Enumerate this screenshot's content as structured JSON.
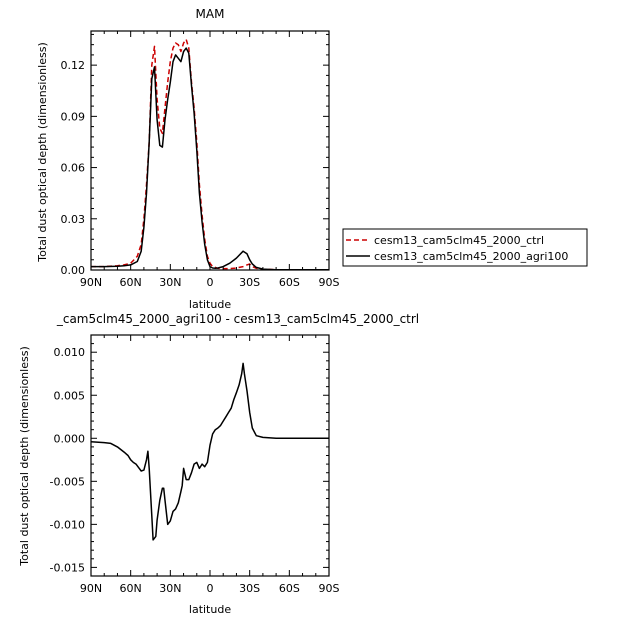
{
  "chart_data": [
    {
      "type": "line",
      "title": "MAM",
      "xlabel": "latitude",
      "ylabel": "Total dust optical depth (dimensionless)",
      "xlim": [
        90,
        -90
      ],
      "ylim": [
        0,
        0.14
      ],
      "xticks": [
        90,
        60,
        30,
        0,
        -30,
        -60,
        -90
      ],
      "xticklabels": [
        "90N",
        "60N",
        "30N",
        "0",
        "30S",
        "60S",
        "90S"
      ],
      "yticks": [
        0,
        0.03,
        0.06,
        0.09,
        0.12
      ],
      "yticklabels": [
        "0.00",
        "0.03",
        "0.06",
        "0.09",
        "0.12"
      ],
      "legend_position": "right",
      "series": [
        {
          "name": "cesm13_cam5clm45_2000_ctrl",
          "color": "#cc0000",
          "dash": "dashed",
          "x": [
            90,
            80,
            70,
            65,
            60,
            55,
            52,
            50,
            48,
            46,
            44,
            42,
            40,
            38,
            36,
            34,
            32,
            30,
            28,
            26,
            24,
            22,
            20,
            18,
            16,
            14,
            12,
            10,
            8,
            6,
            4,
            2,
            0,
            -2,
            -4,
            -6,
            -10,
            -15,
            -20,
            -25,
            -28,
            -30,
            -32,
            -35,
            -40,
            -50,
            -60,
            -70,
            -80,
            -90
          ],
          "y": [
            0.002,
            0.002,
            0.0025,
            0.003,
            0.004,
            0.008,
            0.015,
            0.03,
            0.05,
            0.075,
            0.12,
            0.131,
            0.1,
            0.083,
            0.08,
            0.095,
            0.11,
            0.122,
            0.13,
            0.133,
            0.132,
            0.128,
            0.133,
            0.135,
            0.13,
            0.11,
            0.095,
            0.075,
            0.05,
            0.032,
            0.018,
            0.008,
            0.004,
            0.002,
            0.0015,
            0.001,
            0.0008,
            0.0008,
            0.0012,
            0.002,
            0.003,
            0.0035,
            0.002,
            0.001,
            0.0005,
            0.0002,
            0.0001,
            0.0001,
            0.0001,
            0.0001
          ]
        },
        {
          "name": "cesm13_cam5clm45_2000_agri100",
          "color": "#000000",
          "dash": "solid",
          "x": [
            90,
            80,
            70,
            65,
            60,
            55,
            52,
            50,
            48,
            46,
            44,
            42,
            40,
            38,
            36,
            34,
            32,
            30,
            28,
            26,
            24,
            22,
            20,
            18,
            16,
            14,
            12,
            10,
            8,
            6,
            4,
            2,
            0,
            -2,
            -4,
            -6,
            -10,
            -15,
            -20,
            -25,
            -28,
            -30,
            -32,
            -35,
            -40,
            -50,
            -60,
            -70,
            -80,
            -90
          ],
          "y": [
            0.002,
            0.002,
            0.0022,
            0.0025,
            0.003,
            0.005,
            0.011,
            0.025,
            0.045,
            0.075,
            0.112,
            0.119,
            0.088,
            0.073,
            0.072,
            0.088,
            0.1,
            0.11,
            0.122,
            0.126,
            0.124,
            0.122,
            0.128,
            0.13,
            0.127,
            0.108,
            0.092,
            0.07,
            0.045,
            0.028,
            0.015,
            0.006,
            0.002,
            0.0012,
            0.001,
            0.0012,
            0.002,
            0.004,
            0.007,
            0.011,
            0.0095,
            0.006,
            0.0035,
            0.0015,
            0.0005,
            0.0002,
            0.0001,
            0.0001,
            0.0001,
            0.0001
          ]
        }
      ]
    },
    {
      "type": "line",
      "title": "_cam5clm45_2000_agri100 - cesm13_cam5clm45_2000_ctrl",
      "xlabel": "latitude",
      "ylabel": "Total dust optical depth (dimensionless)",
      "xlim": [
        90,
        -90
      ],
      "ylim": [
        -0.016,
        0.012
      ],
      "xticks": [
        90,
        60,
        30,
        0,
        -30,
        -60,
        -90
      ],
      "xticklabels": [
        "90N",
        "60N",
        "30N",
        "0",
        "30S",
        "60S",
        "90S"
      ],
      "yticks": [
        -0.015,
        -0.01,
        -0.005,
        0,
        0.005,
        0.01
      ],
      "yticklabels": [
        "-0.015",
        "-0.010",
        "-0.005",
        "0.000",
        "0.005",
        "0.010"
      ],
      "series": [
        {
          "color": "#000000",
          "dash": "solid",
          "x": [
            90,
            80,
            75,
            70,
            65,
            62,
            60,
            58,
            56,
            54,
            52,
            50,
            48,
            47,
            46,
            44,
            43,
            41,
            40,
            38,
            36,
            35,
            34,
            32,
            30,
            28,
            26,
            24,
            22,
            21,
            20,
            18,
            16,
            14,
            12,
            10,
            8,
            6,
            4,
            2,
            0,
            -2,
            -4,
            -6,
            -8,
            -10,
            -12,
            -14,
            -16,
            -18,
            -20,
            -22,
            -24,
            -25,
            -26,
            -28,
            -30,
            -32,
            -35,
            -40,
            -50,
            -60,
            -70,
            -80,
            -90
          ],
          "y": [
            -0.0004,
            -0.0005,
            -0.0006,
            -0.001,
            -0.0016,
            -0.002,
            -0.0025,
            -0.0028,
            -0.003,
            -0.0034,
            -0.0038,
            -0.0037,
            -0.0025,
            -0.0015,
            -0.0035,
            -0.009,
            -0.0118,
            -0.0114,
            -0.0095,
            -0.0072,
            -0.0058,
            -0.0058,
            -0.0072,
            -0.01,
            -0.0096,
            -0.0085,
            -0.0082,
            -0.0075,
            -0.0062,
            -0.0055,
            -0.0035,
            -0.0048,
            -0.0048,
            -0.004,
            -0.003,
            -0.0028,
            -0.0035,
            -0.003,
            -0.0033,
            -0.0028,
            -0.0008,
            0.0005,
            0.001,
            0.0012,
            0.0015,
            0.002,
            0.0025,
            0.003,
            0.0035,
            0.0045,
            0.0053,
            0.0062,
            0.0075,
            0.0087,
            0.0075,
            0.0055,
            0.003,
            0.0012,
            0.0003,
            0.0001,
            0.0,
            0.0,
            0.0,
            0.0,
            0.0
          ]
        }
      ]
    }
  ]
}
